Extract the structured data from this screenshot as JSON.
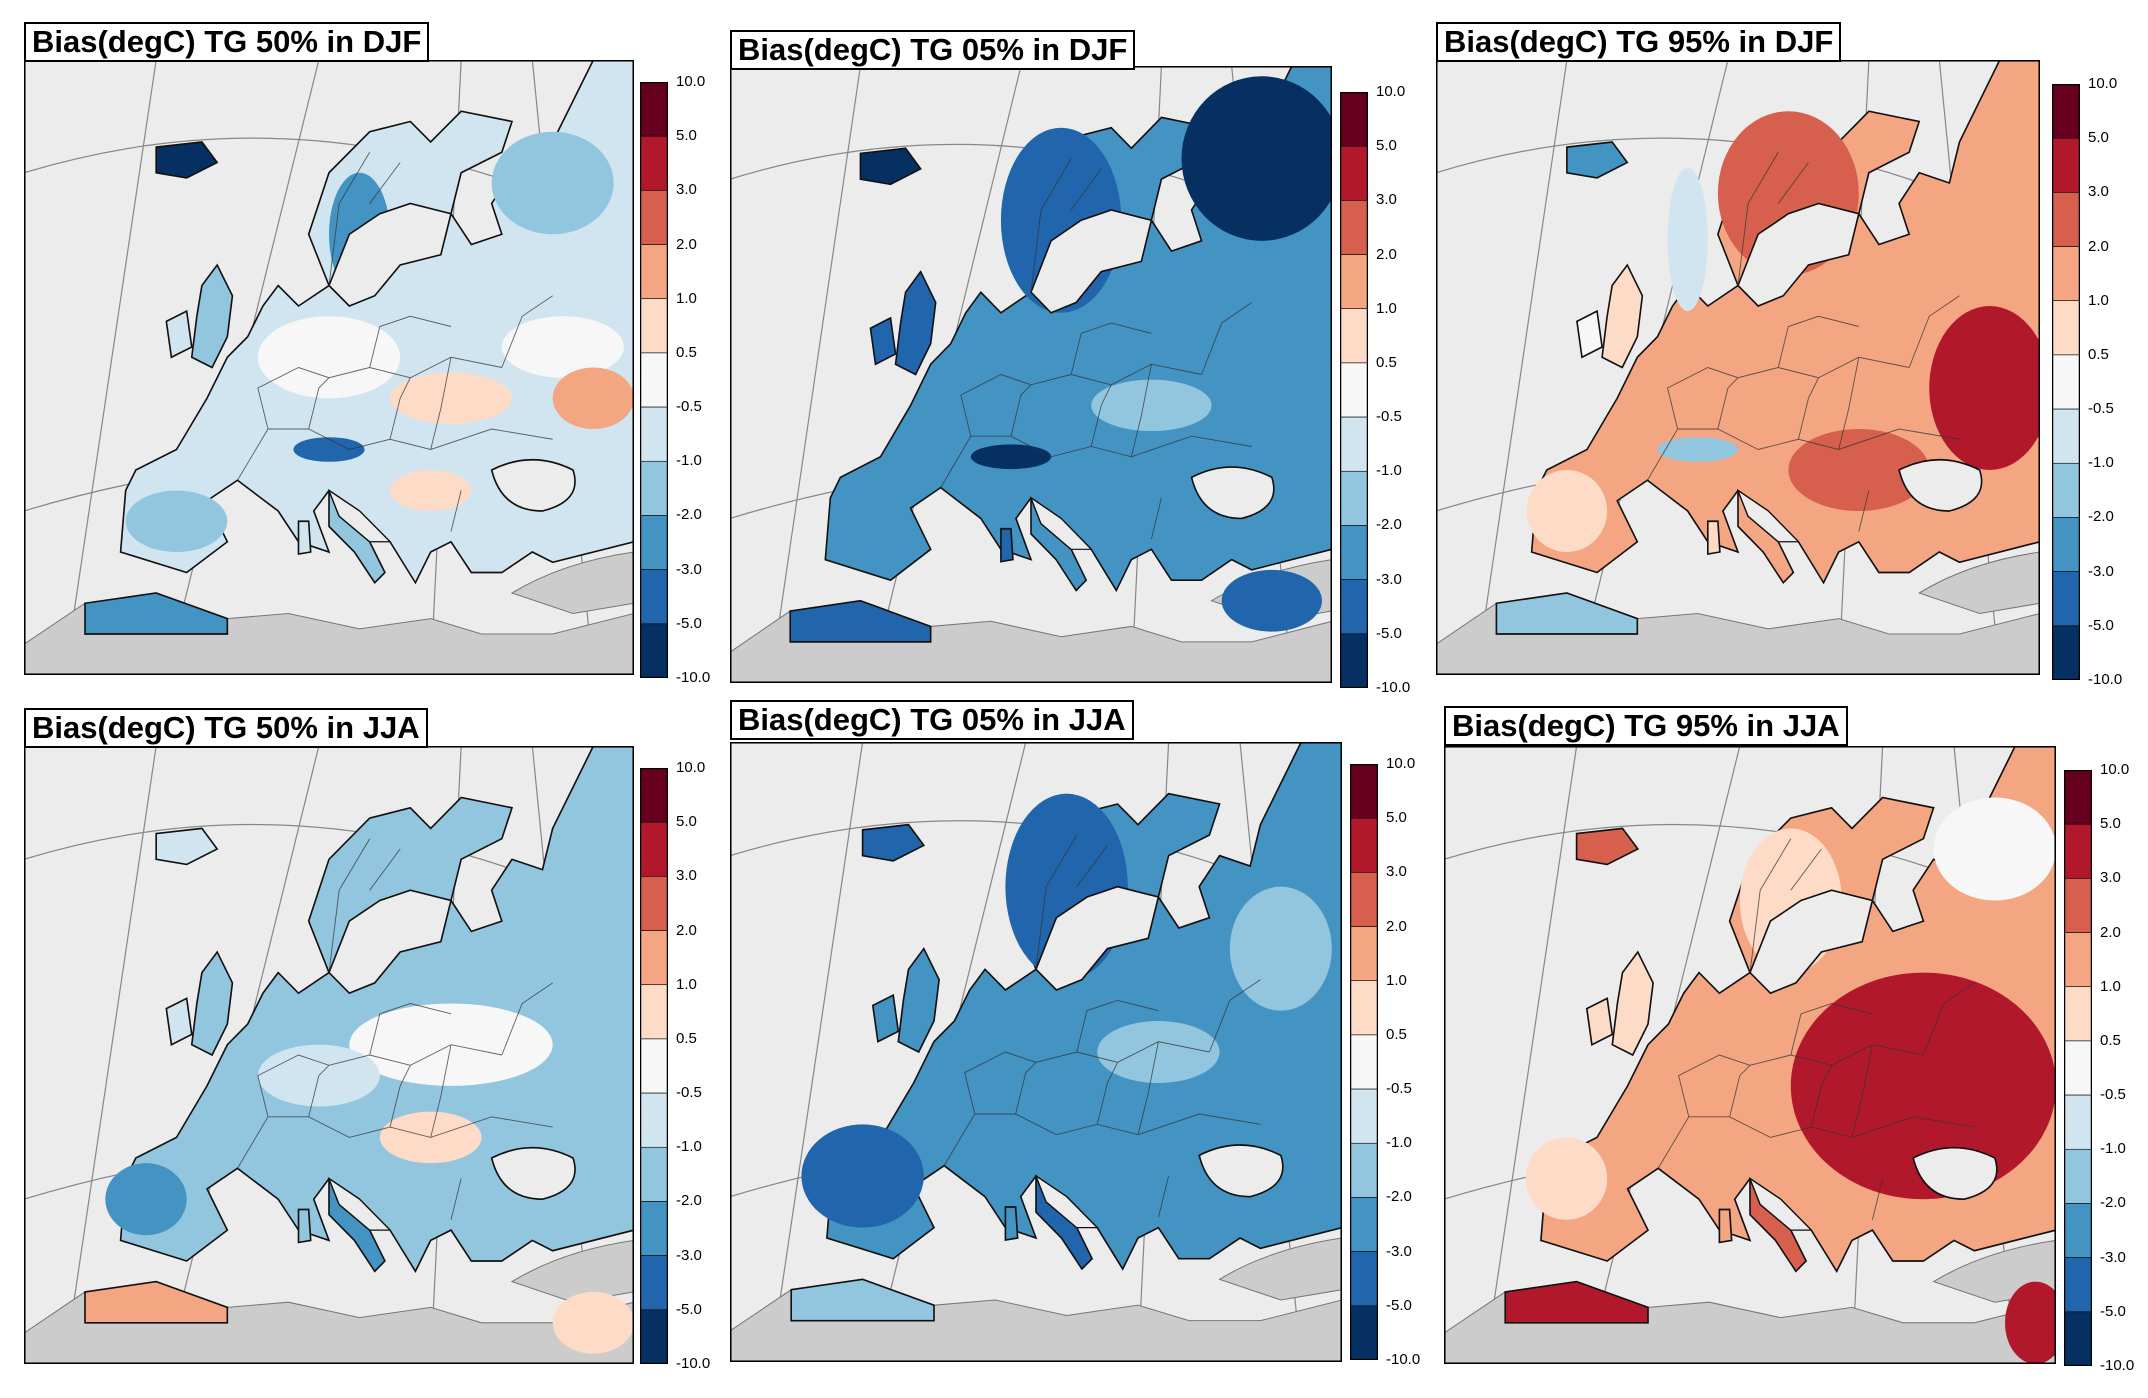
{
  "figure": {
    "colorbar_ticks": [
      "10.0",
      "5.0",
      "3.0",
      "2.0",
      "1.0",
      "0.5",
      "-0.5",
      "-1.0",
      "-2.0",
      "-3.0",
      "-5.0",
      "-10.0"
    ],
    "colorbar_colors": [
      "#67001f",
      "#b2182b",
      "#d6604d",
      "#f4a582",
      "#fddbc7",
      "#f7f7f7",
      "#d1e5f0",
      "#92c5de",
      "#4393c3",
      "#2166ac",
      "#053061"
    ],
    "land_masked_color": "#cccccc",
    "ocean_color": "#ececec"
  },
  "panels": [
    {
      "title": "Bias(degC) TG 50% in DJF",
      "variable": "TG",
      "percentile": "50%",
      "season": "DJF",
      "dominant_sign": "mixed, mostly slight cold bias"
    },
    {
      "title": "Bias(degC) TG 05% in DJF",
      "variable": "TG",
      "percentile": "05%",
      "season": "DJF",
      "dominant_sign": "cold bias"
    },
    {
      "title": "Bias(degC) TG 95% in DJF",
      "variable": "TG",
      "percentile": "95%",
      "season": "DJF",
      "dominant_sign": "warm bias"
    },
    {
      "title": "Bias(degC) TG 50% in JJA",
      "variable": "TG",
      "percentile": "50%",
      "season": "JJA",
      "dominant_sign": "mixed, mostly slight cold bias"
    },
    {
      "title": "Bias(degC) TG 05% in JJA",
      "variable": "TG",
      "percentile": "05%",
      "season": "JJA",
      "dominant_sign": "cold bias"
    },
    {
      "title": "Bias(degC) TG 95% in JJA",
      "variable": "TG",
      "percentile": "95%",
      "season": "JJA",
      "dominant_sign": "warm bias"
    }
  ]
}
